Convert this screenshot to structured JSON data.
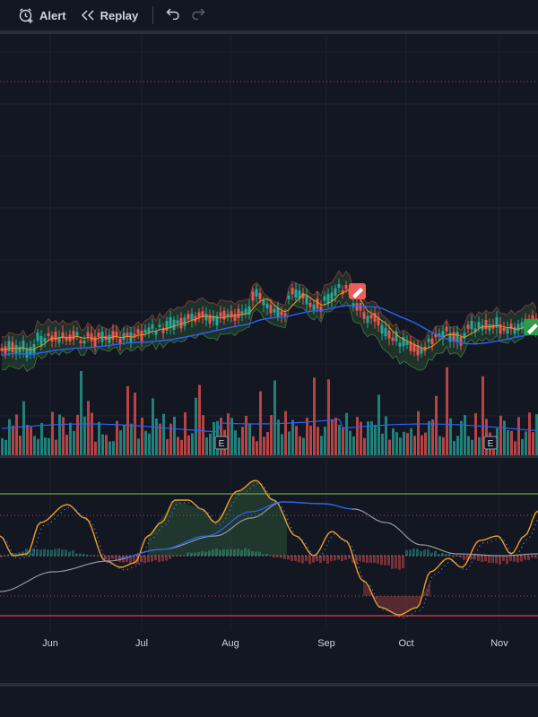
{
  "toolbar": {
    "alert_label": "Alert",
    "replay_label": "Replay"
  },
  "xaxis": {
    "months": [
      "Jun",
      "Jul",
      "Aug",
      "Sep",
      "Oct",
      "Nov"
    ]
  },
  "earnings_marker": "E",
  "colors": {
    "background": "#131722",
    "up": "#26a69a",
    "down": "#ef5350",
    "ema_fast": "#f7931a",
    "ema_slow": "#2962ff",
    "osc_line": "#f0a020",
    "osc_signal": "#5b7cfa",
    "osc_slow": "#9598a1",
    "upper_band": "#8bc34a",
    "lower_band": "#f23645"
  },
  "icons": [
    "alarm-clock-icon",
    "replay-icon",
    "undo-icon",
    "redo-icon",
    "pencil-icon",
    "edit-icon"
  ]
}
